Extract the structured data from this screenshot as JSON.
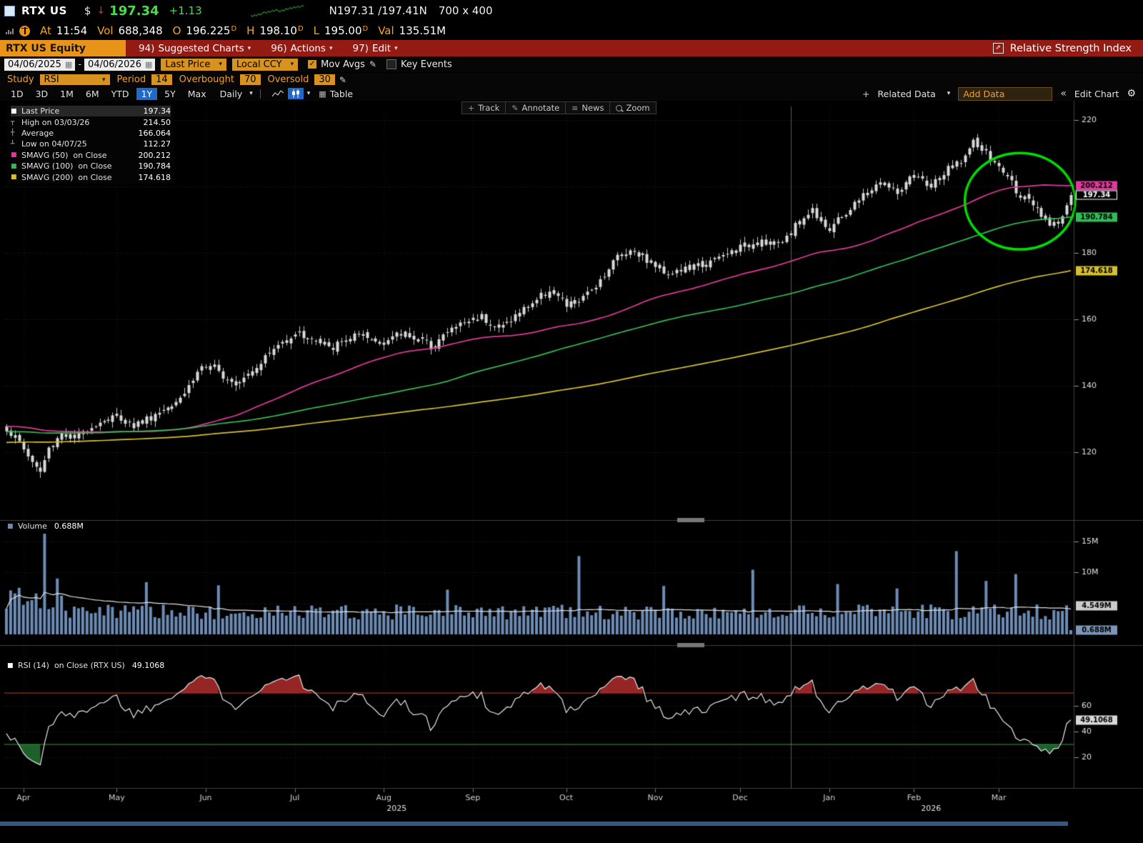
{
  "icons": {
    "chevron_down": "▾",
    "down_arrow": "↓",
    "pencil": "✎",
    "gear": "⚙",
    "export": "⇗",
    "calendar": "▦",
    "check": "✓",
    "collapse": "«",
    "plus": "+",
    "table": "▦",
    "news": "≡",
    "track": "+"
  },
  "titlebar": {
    "ticker": "RTX US",
    "dollar": "$",
    "price": "197.34",
    "change": "+1.13",
    "bid_ask": "N197.31 /197.41N",
    "size_label": "700 x 400"
  },
  "quotebar": {
    "at_label": "At",
    "time": "11:54",
    "vol_label": "Vol",
    "vol": "688,348",
    "o_label": "O",
    "o_value": "196.225",
    "h_label": "H",
    "h_value": "198.10",
    "l_label": "L",
    "l_value": "195.00",
    "d_suffix": "D",
    "val_label": "Val",
    "val_value": "135.51M"
  },
  "menubar": {
    "security": "RTX US Equity",
    "items": [
      {
        "num": "94)",
        "label": "Suggested Charts"
      },
      {
        "num": "96)",
        "label": "Actions"
      },
      {
        "num": "97)",
        "label": "Edit"
      }
    ],
    "right_label": "Relative Strength Index"
  },
  "toolbar": {
    "date_from": "04/06/2025",
    "range_dash": "-",
    "date_to": "04/06/2026",
    "price_mode": "Last Price",
    "currency_mode": "Local CCY",
    "mov_avgs_label": "Mov Avgs",
    "key_events_label": "Key Events"
  },
  "studybar": {
    "study_label": "Study",
    "study_value": "RSI",
    "period_label": "Period",
    "period_value": "14",
    "overbought_label": "Overbought",
    "overbought_value": "70",
    "oversold_label": "Oversold",
    "oversold_value": "30"
  },
  "rangebar": {
    "tabs": [
      "1D",
      "3D",
      "1M",
      "6M",
      "YTD",
      "1Y",
      "5Y",
      "Max"
    ],
    "active_tab": "1Y",
    "frequency": "Daily",
    "table_label": "Table",
    "related_label": "Related Data",
    "add_data_label": "Add Data",
    "edit_chart_label": "Edit Chart"
  },
  "chart_tools": [
    "Track",
    "Annotate",
    "News",
    "Zoom"
  ],
  "legend": {
    "main": [
      {
        "marker": "■",
        "color": "#ffffff",
        "label": "Last Price",
        "value": "197.34"
      },
      {
        "marker": "┬",
        "color": "#cccccc",
        "label": "High on 03/03/26",
        "value": "214.50"
      },
      {
        "marker": "┼",
        "color": "#cccccc",
        "label": "Average",
        "value": "166.064"
      },
      {
        "marker": "┴",
        "color": "#cccccc",
        "label": "Low on 04/07/25",
        "value": "112.27"
      },
      {
        "marker": "■",
        "color": "#e0399c",
        "label": "SMAVG (50)  on Close",
        "value": "200.212"
      },
      {
        "marker": "■",
        "color": "#33bb55",
        "label": "SMAVG (100)  on Close",
        "value": "190.784"
      },
      {
        "marker": "■",
        "color": "#d6c02e",
        "label": "SMAVG (200)  on Close",
        "value": "174.618"
      }
    ],
    "volume": {
      "marker": "■",
      "color": "#6d8cb5",
      "label": "Volume",
      "value": "0.688M"
    },
    "rsi": {
      "marker": "■",
      "color": "#ffffff",
      "label": "RSI (14)  on Close (RTX US)",
      "value": "49.1068"
    }
  },
  "sparkline": [
    195.2,
    195.0,
    195.4,
    195.1,
    195.6,
    195.3,
    195.8,
    196.0,
    195.7,
    196.2,
    195.9,
    196.4,
    196.1,
    196.6,
    196.3,
    196.0,
    196.5,
    196.2,
    196.8,
    196.5,
    197.0,
    196.7,
    197.2,
    196.9,
    197.3,
    197.0,
    197.4,
    197.34
  ],
  "chart_data": {
    "type": "candlestick",
    "symbol": "RTX US",
    "days": 252,
    "last_price": 197.34,
    "high_marker": {
      "date": "03/03/26",
      "value": 214.5,
      "day": 228
    },
    "low_marker": {
      "date": "04/07/25",
      "value": 112.27,
      "day": 8
    },
    "average": 166.064,
    "price_axis": {
      "min": 100,
      "max": 224,
      "ticks": [
        220,
        180,
        160,
        140,
        120
      ],
      "gridlines": [
        220,
        200,
        180,
        160,
        140,
        120
      ]
    },
    "price_anchors": [
      [
        0,
        127
      ],
      [
        3,
        123
      ],
      [
        6,
        117
      ],
      [
        8,
        114
      ],
      [
        10,
        121
      ],
      [
        13,
        126
      ],
      [
        16,
        124
      ],
      [
        20,
        128
      ],
      [
        26,
        131
      ],
      [
        30,
        128
      ],
      [
        36,
        132
      ],
      [
        42,
        138
      ],
      [
        46,
        146
      ],
      [
        50,
        144
      ],
      [
        54,
        141
      ],
      [
        58,
        145
      ],
      [
        63,
        151
      ],
      [
        68,
        156
      ],
      [
        72,
        154
      ],
      [
        76,
        151
      ],
      [
        82,
        155
      ],
      [
        88,
        153
      ],
      [
        94,
        156
      ],
      [
        100,
        152
      ],
      [
        106,
        158
      ],
      [
        112,
        161
      ],
      [
        116,
        157
      ],
      [
        122,
        163
      ],
      [
        128,
        169
      ],
      [
        132,
        164
      ],
      [
        136,
        166
      ],
      [
        140,
        172
      ],
      [
        144,
        179
      ],
      [
        148,
        181
      ],
      [
        152,
        177
      ],
      [
        156,
        174
      ],
      [
        160,
        175
      ],
      [
        166,
        177
      ],
      [
        172,
        181
      ],
      [
        178,
        184
      ],
      [
        182,
        182
      ],
      [
        186,
        188
      ],
      [
        190,
        193
      ],
      [
        194,
        187
      ],
      [
        198,
        192
      ],
      [
        202,
        197
      ],
      [
        206,
        201
      ],
      [
        210,
        198
      ],
      [
        214,
        203
      ],
      [
        218,
        200
      ],
      [
        222,
        205
      ],
      [
        226,
        209
      ],
      [
        228,
        213
      ],
      [
        230,
        211
      ],
      [
        233,
        207
      ],
      [
        236,
        203
      ],
      [
        238,
        199
      ],
      [
        240,
        196
      ],
      [
        242,
        194
      ],
      [
        244,
        191
      ],
      [
        246,
        189
      ],
      [
        249,
        191
      ],
      [
        251,
        197.3
      ]
    ],
    "sma_series": [
      {
        "period": 50,
        "color": "#e0399c",
        "last": 200.212,
        "last_label": "200.212"
      },
      {
        "period": 100,
        "color": "#33bb55",
        "last": 190.784,
        "last_label": "190.784"
      },
      {
        "period": 200,
        "color": "#d6c02e",
        "last": 174.618,
        "last_label": "174.618"
      }
    ],
    "volume": {
      "unit": "M",
      "base": 2.4,
      "last": 0.688,
      "average_label": "4.549M",
      "spikes": {
        "3": 7.5,
        "9": 16.2,
        "12": 9.0,
        "33": 8.4,
        "50": 7.9,
        "104": 7.2,
        "135": 12.6,
        "155": 7.8,
        "176": 10.4,
        "196": 8.1,
        "210": 7.4,
        "224": 13.4,
        "231": 8.6,
        "238": 9.7,
        "251": 0.688
      },
      "ticks": [
        {
          "v": 15,
          "label": "15M"
        },
        {
          "v": 10,
          "label": "10M"
        }
      ],
      "badges": [
        {
          "label": "4.549M",
          "v": 4.549,
          "bg": "#cccccc",
          "fg": "#000000"
        },
        {
          "label": "0.688M",
          "v": 0.688,
          "bg": "#7d97b8",
          "fg": "#000000"
        }
      ]
    },
    "rsi": {
      "period": 14,
      "overbought": 70,
      "oversold": 30,
      "last": 49.1068,
      "last_label": "49.1068",
      "ticks": [
        60,
        40,
        20
      ],
      "overbought_color": "#cc3333",
      "oversold_color": "#2f9e44"
    },
    "months": [
      {
        "label": "Apr",
        "day": 4
      },
      {
        "label": "May",
        "day": 26
      },
      {
        "label": "Jun",
        "day": 47
      },
      {
        "label": "Jul",
        "day": 68
      },
      {
        "label": "Aug",
        "day": 89
      },
      {
        "label": "Sep",
        "day": 110
      },
      {
        "label": "Oct",
        "day": 132
      },
      {
        "label": "Nov",
        "day": 153
      },
      {
        "label": "Dec",
        "day": 173
      },
      {
        "label": "Jan",
        "day": 194
      },
      {
        "label": "Feb",
        "day": 214
      },
      {
        "label": "Mar",
        "day": 234
      }
    ],
    "year_labels": [
      {
        "label": "2025",
        "day": 92
      },
      {
        "label": "2026",
        "day": 218
      }
    ],
    "year_divider_day": 185,
    "price_badges": [
      {
        "label": "200.212",
        "price": 200.212,
        "bg": "#e0399c",
        "fg": "#000000"
      },
      {
        "label": "197.34",
        "price": 197.34,
        "bg": "#000000",
        "fg": "#ffffff",
        "border": "#ffffff"
      },
      {
        "label": "190.784",
        "price": 190.784,
        "bg": "#33bb55",
        "fg": "#000000"
      },
      {
        "label": "174.618",
        "price": 174.618,
        "bg": "#d6c02e",
        "fg": "#000000"
      }
    ],
    "annotation_circle": {
      "day": 239,
      "price": 195.5,
      "rx_days": 13,
      "ry_price": 14.5,
      "color": "#00dd00"
    },
    "candle_color": "#d9d9d9"
  }
}
